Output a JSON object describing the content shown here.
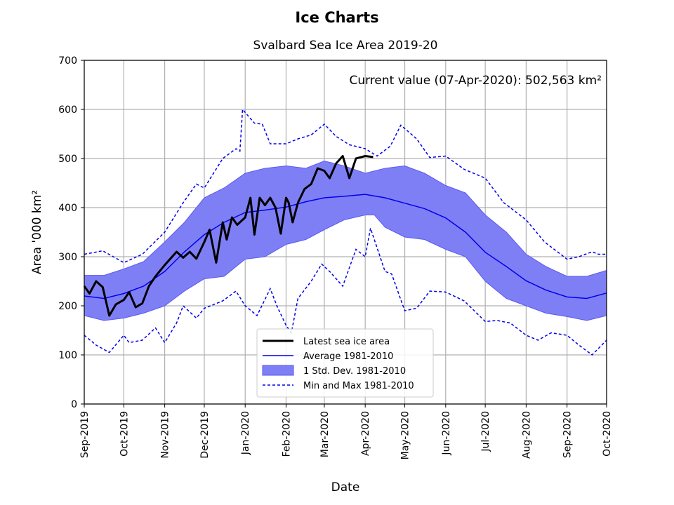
{
  "chart_data": {
    "type": "line",
    "suptitle": "Ice Charts",
    "title": "Svalbard Sea Ice Area 2019-20",
    "annotation": "Current value (07-Apr-2020): 502,563 km²",
    "xlabel": "Date",
    "ylabel": "Area '000 km²",
    "x_unit": "days since 01-Sep-2019",
    "xlim": [
      0,
      396
    ],
    "ylim": [
      0,
      700
    ],
    "grid": true,
    "yticks": [
      0,
      100,
      200,
      300,
      400,
      500,
      600,
      700
    ],
    "xticks": [
      {
        "day": 0,
        "label": "Sep-2019"
      },
      {
        "day": 30,
        "label": "Oct-2019"
      },
      {
        "day": 61,
        "label": "Nov-2019"
      },
      {
        "day": 91,
        "label": "Dec-2019"
      },
      {
        "day": 122,
        "label": "Jan-2020"
      },
      {
        "day": 153,
        "label": "Feb-2020"
      },
      {
        "day": 182,
        "label": "Mar-2020"
      },
      {
        "day": 213,
        "label": "Apr-2020"
      },
      {
        "day": 243,
        "label": "May-2020"
      },
      {
        "day": 274,
        "label": "Jun-2020"
      },
      {
        "day": 304,
        "label": "Jul-2020"
      },
      {
        "day": 335,
        "label": "Aug-2020"
      },
      {
        "day": 366,
        "label": "Sep-2020"
      },
      {
        "day": 396,
        "label": "Oct-2020"
      }
    ],
    "legend_position": "lower-center",
    "legend": [
      "Latest sea ice area",
      "Average 1981-2010",
      "1 Std. Dev. 1981-2010",
      "Min and Max 1981-2010"
    ],
    "colors": {
      "latest": "#000000",
      "average": "#0000ee",
      "std_fill": "#7f7ff5",
      "minmax": "#0000ee"
    },
    "series": {
      "latest": [
        [
          0,
          240
        ],
        [
          4,
          225
        ],
        [
          9,
          250
        ],
        [
          14,
          238
        ],
        [
          19,
          180
        ],
        [
          24,
          203
        ],
        [
          30,
          212
        ],
        [
          34,
          228
        ],
        [
          39,
          197
        ],
        [
          44,
          205
        ],
        [
          49,
          240
        ],
        [
          54,
          260
        ],
        [
          61,
          283
        ],
        [
          65,
          295
        ],
        [
          70,
          310
        ],
        [
          75,
          298
        ],
        [
          80,
          310
        ],
        [
          85,
          296
        ],
        [
          91,
          330
        ],
        [
          95,
          355
        ],
        [
          100,
          288
        ],
        [
          105,
          370
        ],
        [
          108,
          335
        ],
        [
          112,
          380
        ],
        [
          116,
          365
        ],
        [
          122,
          380
        ],
        [
          126,
          420
        ],
        [
          129,
          345
        ],
        [
          133,
          420
        ],
        [
          137,
          405
        ],
        [
          141,
          420
        ],
        [
          145,
          400
        ],
        [
          149,
          347
        ],
        [
          153,
          420
        ],
        [
          155,
          410
        ],
        [
          158,
          370
        ],
        [
          162,
          410
        ],
        [
          167,
          438
        ],
        [
          172,
          448
        ],
        [
          177,
          480
        ],
        [
          182,
          475
        ],
        [
          186,
          460
        ],
        [
          191,
          490
        ],
        [
          196,
          505
        ],
        [
          201,
          460
        ],
        [
          206,
          500
        ],
        [
          213,
          505
        ],
        [
          219,
          503
        ]
      ],
      "average": [
        [
          0,
          220
        ],
        [
          15,
          215
        ],
        [
          30,
          225
        ],
        [
          45,
          240
        ],
        [
          61,
          270
        ],
        [
          76,
          310
        ],
        [
          91,
          345
        ],
        [
          106,
          370
        ],
        [
          122,
          390
        ],
        [
          137,
          395
        ],
        [
          153,
          401
        ],
        [
          168,
          412
        ],
        [
          182,
          420
        ],
        [
          197,
          423
        ],
        [
          213,
          427
        ],
        [
          228,
          420
        ],
        [
          243,
          409
        ],
        [
          258,
          398
        ],
        [
          274,
          379
        ],
        [
          289,
          350
        ],
        [
          304,
          309
        ],
        [
          320,
          280
        ],
        [
          335,
          251
        ],
        [
          350,
          232
        ],
        [
          366,
          218
        ],
        [
          381,
          215
        ],
        [
          396,
          226
        ]
      ],
      "std_upper": [
        [
          0,
          262
        ],
        [
          15,
          262
        ],
        [
          30,
          275
        ],
        [
          45,
          290
        ],
        [
          61,
          330
        ],
        [
          76,
          370
        ],
        [
          91,
          420
        ],
        [
          106,
          440
        ],
        [
          122,
          470
        ],
        [
          137,
          480
        ],
        [
          153,
          485
        ],
        [
          168,
          480
        ],
        [
          182,
          495
        ],
        [
          197,
          485
        ],
        [
          213,
          470
        ],
        [
          228,
          480
        ],
        [
          243,
          485
        ],
        [
          258,
          470
        ],
        [
          274,
          445
        ],
        [
          289,
          430
        ],
        [
          304,
          385
        ],
        [
          320,
          350
        ],
        [
          335,
          305
        ],
        [
          350,
          280
        ],
        [
          366,
          260
        ],
        [
          381,
          260
        ],
        [
          396,
          272
        ]
      ],
      "std_lower": [
        [
          0,
          180
        ],
        [
          15,
          170
        ],
        [
          30,
          175
        ],
        [
          45,
          185
        ],
        [
          61,
          200
        ],
        [
          76,
          230
        ],
        [
          91,
          255
        ],
        [
          106,
          260
        ],
        [
          122,
          295
        ],
        [
          137,
          300
        ],
        [
          153,
          325
        ],
        [
          168,
          335
        ],
        [
          182,
          355
        ],
        [
          197,
          375
        ],
        [
          213,
          385
        ],
        [
          220,
          385
        ],
        [
          228,
          360
        ],
        [
          243,
          340
        ],
        [
          258,
          335
        ],
        [
          274,
          315
        ],
        [
          289,
          300
        ],
        [
          304,
          250
        ],
        [
          320,
          215
        ],
        [
          335,
          200
        ],
        [
          350,
          185
        ],
        [
          366,
          178
        ],
        [
          381,
          170
        ],
        [
          396,
          180
        ]
      ],
      "max": [
        [
          0,
          305
        ],
        [
          14,
          312
        ],
        [
          30,
          288
        ],
        [
          44,
          305
        ],
        [
          61,
          350
        ],
        [
          75,
          410
        ],
        [
          85,
          448
        ],
        [
          91,
          440
        ],
        [
          105,
          500
        ],
        [
          115,
          520
        ],
        [
          118,
          515
        ],
        [
          129,
          572
        ],
        [
          120,
          600
        ],
        [
          135,
          570
        ],
        [
          141,
          530
        ],
        [
          153,
          530
        ],
        [
          162,
          540
        ],
        [
          172,
          548
        ],
        [
          182,
          570
        ],
        [
          191,
          545
        ],
        [
          201,
          528
        ],
        [
          213,
          520
        ],
        [
          222,
          505
        ],
        [
          232,
          525
        ],
        [
          240,
          568
        ],
        [
          252,
          540
        ],
        [
          262,
          502
        ],
        [
          274,
          505
        ],
        [
          288,
          478
        ],
        [
          304,
          460
        ],
        [
          318,
          410
        ],
        [
          335,
          375
        ],
        [
          349,
          330
        ],
        [
          366,
          295
        ],
        [
          375,
          300
        ],
        [
          385,
          310
        ],
        [
          390,
          305
        ],
        [
          396,
          305
        ]
      ],
      "min": [
        [
          0,
          140
        ],
        [
          9,
          120
        ],
        [
          19,
          105
        ],
        [
          30,
          140
        ],
        [
          34,
          125
        ],
        [
          44,
          130
        ],
        [
          54,
          155
        ],
        [
          61,
          125
        ],
        [
          70,
          165
        ],
        [
          75,
          200
        ],
        [
          85,
          175
        ],
        [
          91,
          195
        ],
        [
          105,
          210
        ],
        [
          115,
          230
        ],
        [
          122,
          200
        ],
        [
          131,
          180
        ],
        [
          141,
          235
        ],
        [
          146,
          200
        ],
        [
          153,
          160
        ],
        [
          157,
          145
        ],
        [
          162,
          215
        ],
        [
          172,
          250
        ],
        [
          180,
          285
        ],
        [
          186,
          270
        ],
        [
          196,
          240
        ],
        [
          206,
          315
        ],
        [
          213,
          300
        ],
        [
          217,
          358
        ],
        [
          228,
          270
        ],
        [
          233,
          265
        ],
        [
          243,
          190
        ],
        [
          252,
          195
        ],
        [
          262,
          230
        ],
        [
          274,
          228
        ],
        [
          288,
          210
        ],
        [
          304,
          168
        ],
        [
          313,
          170
        ],
        [
          323,
          165
        ],
        [
          335,
          140
        ],
        [
          344,
          130
        ],
        [
          354,
          145
        ],
        [
          366,
          140
        ],
        [
          375,
          120
        ],
        [
          385,
          100
        ],
        [
          396,
          130
        ]
      ]
    }
  }
}
